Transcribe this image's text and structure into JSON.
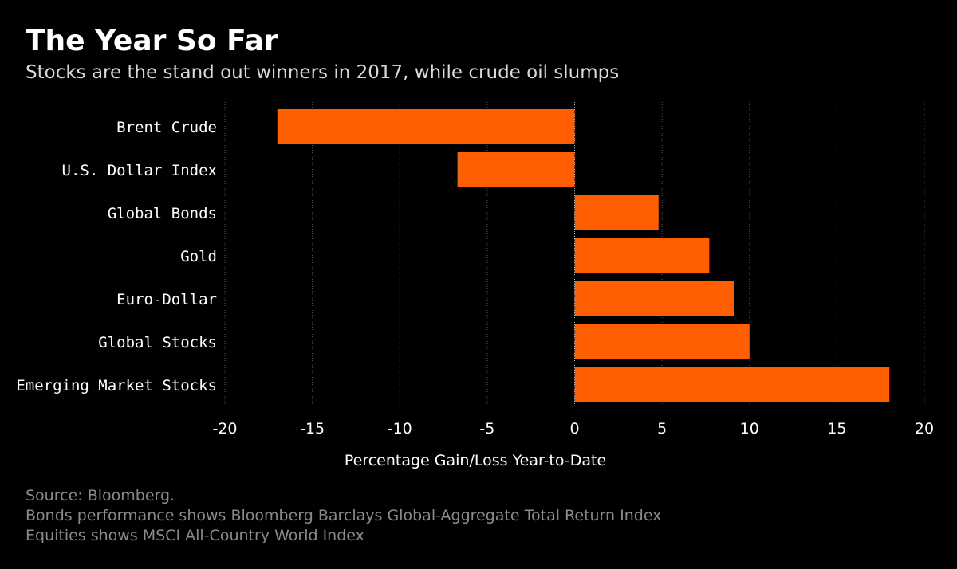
{
  "header": {
    "title": "The Year So Far",
    "subtitle": "Stocks are the stand out winners in 2017, while crude oil slumps"
  },
  "footer": {
    "source": "Source: Bloomberg.",
    "note_1": "Bonds performance shows Bloomberg Barclays Global-Aggregate Total Return Index",
    "note_2": "Equities shows MSCI All-Country World Index"
  },
  "colors": {
    "background": "#000000",
    "bar": "#ff5f00",
    "text": "#ffffff",
    "grid": "#555555",
    "footnote": "#8a8a8a"
  },
  "chart_data": {
    "type": "bar",
    "orientation": "horizontal",
    "title": "The Year So Far",
    "subtitle": "Stocks are the stand out winners in 2017, while crude oil slumps",
    "xlabel": "Percentage Gain/Loss Year-to-Date",
    "ylabel": "",
    "categories": [
      "Brent Crude",
      "U.S. Dollar Index",
      "Global Bonds",
      "Gold",
      "Euro-Dollar",
      "Global Stocks",
      "Emerging Market Stocks"
    ],
    "values": [
      -17.0,
      -6.7,
      4.8,
      7.7,
      9.1,
      10.0,
      18.0
    ],
    "xlim": [
      -20,
      20
    ],
    "xticks": [
      -20,
      -15,
      -10,
      -5,
      0,
      5,
      10,
      15,
      20
    ],
    "xtick_labels": [
      "-20",
      "-15",
      "-10",
      "-5",
      "0",
      "5",
      "10",
      "15",
      "20"
    ],
    "grid": true,
    "grid_style": "dotted vertical",
    "legend": "none"
  }
}
